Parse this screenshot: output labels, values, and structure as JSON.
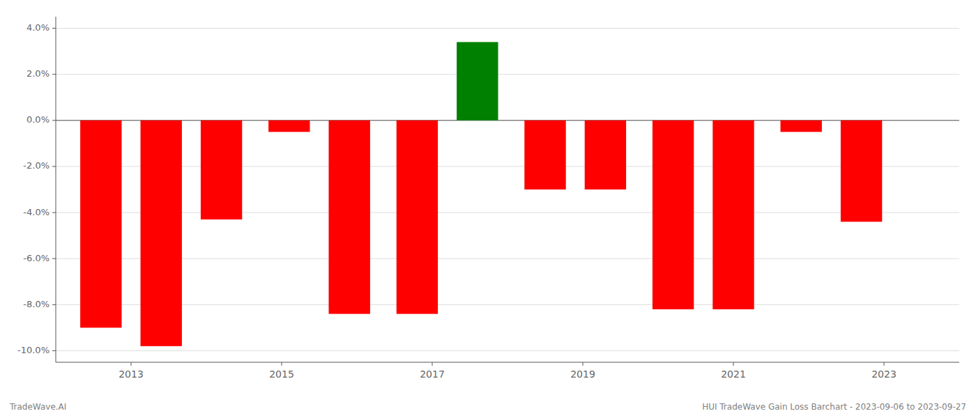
{
  "chart_data": {
    "type": "bar",
    "x": [
      2012.6,
      2013.4,
      2014.2,
      2015.1,
      2015.9,
      2016.8,
      2017.6,
      2018.5,
      2019.3,
      2020.2,
      2021.0,
      2021.9,
      2022.7
    ],
    "values": [
      -0.09,
      -0.098,
      -0.043,
      -0.005,
      -0.084,
      -0.084,
      0.034,
      -0.03,
      -0.03,
      -0.082,
      -0.082,
      -0.005,
      -0.044
    ],
    "colors": [
      "#ff0000",
      "#ff0000",
      "#ff0000",
      "#ff0000",
      "#ff0000",
      "#ff0000",
      "#008000",
      "#ff0000",
      "#ff0000",
      "#ff0000",
      "#ff0000",
      "#ff0000",
      "#ff0000"
    ],
    "xlim": [
      2012.0,
      2024.0
    ],
    "ylim": [
      -0.105,
      0.045
    ],
    "xticks": [
      2013,
      2015,
      2017,
      2019,
      2021,
      2023
    ],
    "yticks": [
      {
        "value": -0.1,
        "label": "-10.0%"
      },
      {
        "value": -0.08,
        "label": "-8.0%"
      },
      {
        "value": -0.06,
        "label": "-6.0%"
      },
      {
        "value": -0.04,
        "label": "-4.0%"
      },
      {
        "value": -0.02,
        "label": "-2.0%"
      },
      {
        "value": 0.0,
        "label": "0.0%"
      },
      {
        "value": 0.02,
        "label": "2.0%"
      },
      {
        "value": 0.04,
        "label": "4.0%"
      }
    ],
    "grid": true,
    "annotations": [
      "TradeWave.AI",
      "HUI TradeWave Gain Loss Barchart - 2023-09-06 to 2023-09-27"
    ]
  }
}
